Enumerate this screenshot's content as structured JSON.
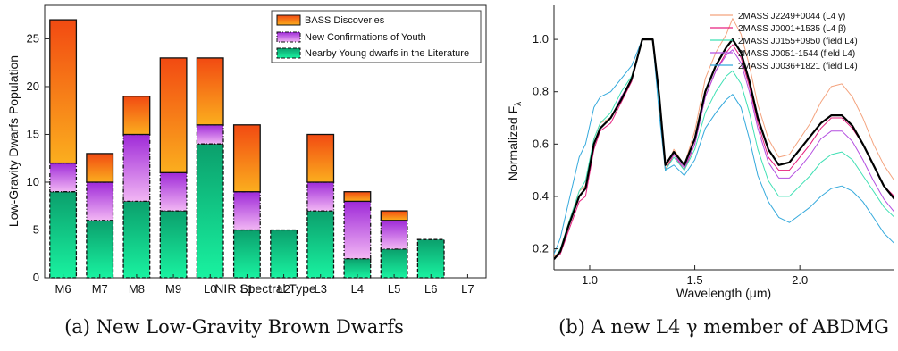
{
  "chart_data": [
    {
      "type": "bar",
      "stacked": true,
      "categories": [
        "M6",
        "M7",
        "M8",
        "M9",
        "L0",
        "L1",
        "L2",
        "L3",
        "L4",
        "L5",
        "L6",
        "L7"
      ],
      "series": [
        {
          "name": "Nearby Young dwarfs in the Literature",
          "values": [
            9,
            6,
            8,
            7,
            14,
            5,
            5,
            7,
            2,
            3,
            4,
            0
          ],
          "color": "#14d68f"
        },
        {
          "name": "New Confirmations of Youth",
          "values": [
            3,
            4,
            7,
            4,
            2,
            4,
            0,
            3,
            6,
            3,
            0,
            0
          ],
          "color": "#b13ee6"
        },
        {
          "name": "BASS Discoveries",
          "values": [
            15,
            3,
            4,
            12,
            7,
            7,
            0,
            5,
            1,
            1,
            0,
            0
          ],
          "color": "#f3641a"
        }
      ],
      "title": "",
      "xlabel": "NIR Spectral Type",
      "ylabel": "Low-Gravity Dwarfs Population",
      "ylim": [
        0,
        28.5
      ],
      "yticks": [
        0,
        5,
        10,
        15,
        20,
        25
      ],
      "legend_position": "top-right",
      "caption": "(a) New Low-Gravity Brown Dwarfs"
    },
    {
      "type": "line",
      "title": "",
      "xlabel": "Wavelength (μm)",
      "ylabel": "Normalized F",
      "ylabel_sub": "λ",
      "xlim": [
        0.83,
        2.45
      ],
      "ylim": [
        0.12,
        1.13
      ],
      "xticks": [
        1.0,
        1.5,
        2.0
      ],
      "xtick_labels": [
        "1.0",
        "1.5",
        "2.0"
      ],
      "yticks": [
        0.2,
        0.4,
        0.6,
        0.8,
        1.0
      ],
      "ytick_labels": [
        "0.2",
        "0.4",
        "0.6",
        "0.8",
        "1.0"
      ],
      "legend_position": "top-right",
      "series": [
        {
          "name": "2MASS J2249+0044 (L4 γ)",
          "color": "#f4a37e",
          "width": 1,
          "points": [
            [
              0.83,
              0.17
            ],
            [
              0.86,
              0.19
            ],
            [
              0.9,
              0.3
            ],
            [
              0.95,
              0.42
            ],
            [
              0.98,
              0.44
            ],
            [
              1.02,
              0.62
            ],
            [
              1.05,
              0.68
            ],
            [
              1.1,
              0.7
            ],
            [
              1.15,
              0.78
            ],
            [
              1.2,
              0.85
            ],
            [
              1.25,
              1.0
            ],
            [
              1.3,
              1.0
            ],
            [
              1.33,
              0.8
            ],
            [
              1.36,
              0.5
            ],
            [
              1.4,
              0.58
            ],
            [
              1.45,
              0.52
            ],
            [
              1.5,
              0.65
            ],
            [
              1.55,
              0.85
            ],
            [
              1.6,
              0.95
            ],
            [
              1.65,
              1.02
            ],
            [
              1.68,
              1.08
            ],
            [
              1.72,
              1.02
            ],
            [
              1.76,
              0.9
            ],
            [
              1.8,
              0.75
            ],
            [
              1.85,
              0.62
            ],
            [
              1.9,
              0.55
            ],
            [
              1.95,
              0.56
            ],
            [
              2.0,
              0.62
            ],
            [
              2.05,
              0.68
            ],
            [
              2.1,
              0.76
            ],
            [
              2.15,
              0.82
            ],
            [
              2.2,
              0.83
            ],
            [
              2.25,
              0.78
            ],
            [
              2.3,
              0.7
            ],
            [
              2.35,
              0.6
            ],
            [
              2.4,
              0.52
            ],
            [
              2.45,
              0.46
            ]
          ]
        },
        {
          "name": "2MASS J0001+1535 (L4 β)",
          "color": "#e6207f",
          "width": 1,
          "points": [
            [
              0.83,
              0.16
            ],
            [
              0.86,
              0.18
            ],
            [
              0.9,
              0.27
            ],
            [
              0.95,
              0.38
            ],
            [
              0.98,
              0.4
            ],
            [
              1.02,
              0.58
            ],
            [
              1.05,
              0.65
            ],
            [
              1.1,
              0.68
            ],
            [
              1.15,
              0.76
            ],
            [
              1.2,
              0.84
            ],
            [
              1.25,
              1.0
            ],
            [
              1.3,
              1.0
            ],
            [
              1.33,
              0.78
            ],
            [
              1.36,
              0.5
            ],
            [
              1.4,
              0.56
            ],
            [
              1.45,
              0.5
            ],
            [
              1.5,
              0.6
            ],
            [
              1.55,
              0.78
            ],
            [
              1.6,
              0.88
            ],
            [
              1.65,
              0.95
            ],
            [
              1.68,
              0.98
            ],
            [
              1.72,
              0.93
            ],
            [
              1.76,
              0.82
            ],
            [
              1.8,
              0.68
            ],
            [
              1.85,
              0.55
            ],
            [
              1.9,
              0.5
            ],
            [
              1.95,
              0.5
            ],
            [
              2.0,
              0.55
            ],
            [
              2.05,
              0.6
            ],
            [
              2.1,
              0.66
            ],
            [
              2.15,
              0.7
            ],
            [
              2.2,
              0.7
            ],
            [
              2.25,
              0.66
            ],
            [
              2.3,
              0.6
            ],
            [
              2.35,
              0.52
            ],
            [
              2.4,
              0.44
            ],
            [
              2.45,
              0.4
            ]
          ]
        },
        {
          "name": "2MASS J0155+0950 (field L4)",
          "color": "#3fe0b4",
          "width": 1,
          "points": [
            [
              0.83,
              0.16
            ],
            [
              0.86,
              0.2
            ],
            [
              0.9,
              0.3
            ],
            [
              0.95,
              0.42
            ],
            [
              0.98,
              0.46
            ],
            [
              1.02,
              0.62
            ],
            [
              1.05,
              0.68
            ],
            [
              1.1,
              0.72
            ],
            [
              1.15,
              0.8
            ],
            [
              1.2,
              0.86
            ],
            [
              1.25,
              1.0
            ],
            [
              1.3,
              1.0
            ],
            [
              1.33,
              0.76
            ],
            [
              1.36,
              0.5
            ],
            [
              1.4,
              0.55
            ],
            [
              1.45,
              0.5
            ],
            [
              1.5,
              0.58
            ],
            [
              1.55,
              0.72
            ],
            [
              1.6,
              0.8
            ],
            [
              1.65,
              0.86
            ],
            [
              1.68,
              0.88
            ],
            [
              1.72,
              0.83
            ],
            [
              1.76,
              0.72
            ],
            [
              1.8,
              0.58
            ],
            [
              1.85,
              0.46
            ],
            [
              1.9,
              0.4
            ],
            [
              1.95,
              0.4
            ],
            [
              2.0,
              0.44
            ],
            [
              2.05,
              0.48
            ],
            [
              2.1,
              0.53
            ],
            [
              2.15,
              0.56
            ],
            [
              2.2,
              0.57
            ],
            [
              2.25,
              0.54
            ],
            [
              2.3,
              0.48
            ],
            [
              2.35,
              0.42
            ],
            [
              2.4,
              0.36
            ],
            [
              2.45,
              0.32
            ]
          ]
        },
        {
          "name": "2MASS J0051-1544 (field L4)",
          "color": "#b44fe0",
          "width": 1,
          "points": [
            [
              0.83,
              0.16
            ],
            [
              0.86,
              0.19
            ],
            [
              0.9,
              0.29
            ],
            [
              0.95,
              0.4
            ],
            [
              0.98,
              0.43
            ],
            [
              1.02,
              0.6
            ],
            [
              1.05,
              0.66
            ],
            [
              1.1,
              0.7
            ],
            [
              1.15,
              0.78
            ],
            [
              1.2,
              0.85
            ],
            [
              1.25,
              1.0
            ],
            [
              1.3,
              1.0
            ],
            [
              1.33,
              0.78
            ],
            [
              1.36,
              0.52
            ],
            [
              1.4,
              0.56
            ],
            [
              1.45,
              0.51
            ],
            [
              1.5,
              0.6
            ],
            [
              1.55,
              0.78
            ],
            [
              1.6,
              0.88
            ],
            [
              1.65,
              0.94
            ],
            [
              1.68,
              0.96
            ],
            [
              1.72,
              0.91
            ],
            [
              1.76,
              0.8
            ],
            [
              1.8,
              0.66
            ],
            [
              1.85,
              0.53
            ],
            [
              1.9,
              0.47
            ],
            [
              1.95,
              0.47
            ],
            [
              2.0,
              0.51
            ],
            [
              2.05,
              0.56
            ],
            [
              2.1,
              0.62
            ],
            [
              2.15,
              0.65
            ],
            [
              2.2,
              0.65
            ],
            [
              2.25,
              0.61
            ],
            [
              2.3,
              0.54
            ],
            [
              2.35,
              0.46
            ],
            [
              2.4,
              0.39
            ],
            [
              2.45,
              0.34
            ]
          ]
        },
        {
          "name": "2MASS J0036+1821 (field L4)",
          "color": "#34a9dc",
          "width": 1,
          "points": [
            [
              0.83,
              0.18
            ],
            [
              0.86,
              0.24
            ],
            [
              0.9,
              0.38
            ],
            [
              0.95,
              0.55
            ],
            [
              0.98,
              0.6
            ],
            [
              1.02,
              0.74
            ],
            [
              1.05,
              0.78
            ],
            [
              1.1,
              0.8
            ],
            [
              1.15,
              0.85
            ],
            [
              1.2,
              0.9
            ],
            [
              1.25,
              1.0
            ],
            [
              1.3,
              1.0
            ],
            [
              1.33,
              0.72
            ],
            [
              1.36,
              0.5
            ],
            [
              1.4,
              0.52
            ],
            [
              1.45,
              0.48
            ],
            [
              1.5,
              0.54
            ],
            [
              1.55,
              0.66
            ],
            [
              1.6,
              0.72
            ],
            [
              1.65,
              0.77
            ],
            [
              1.68,
              0.79
            ],
            [
              1.72,
              0.74
            ],
            [
              1.76,
              0.62
            ],
            [
              1.8,
              0.48
            ],
            [
              1.85,
              0.38
            ],
            [
              1.9,
              0.32
            ],
            [
              1.95,
              0.3
            ],
            [
              2.0,
              0.33
            ],
            [
              2.05,
              0.36
            ],
            [
              2.1,
              0.4
            ],
            [
              2.15,
              0.43
            ],
            [
              2.2,
              0.44
            ],
            [
              2.25,
              0.42
            ],
            [
              2.3,
              0.38
            ],
            [
              2.35,
              0.32
            ],
            [
              2.4,
              0.26
            ],
            [
              2.45,
              0.22
            ]
          ]
        },
        {
          "name": "",
          "color": "#000000",
          "width": 2.2,
          "points": [
            [
              0.83,
              0.16
            ],
            [
              0.86,
              0.19
            ],
            [
              0.9,
              0.29
            ],
            [
              0.95,
              0.4
            ],
            [
              0.98,
              0.43
            ],
            [
              1.02,
              0.6
            ],
            [
              1.05,
              0.66
            ],
            [
              1.1,
              0.7
            ],
            [
              1.15,
              0.77
            ],
            [
              1.2,
              0.85
            ],
            [
              1.25,
              1.0
            ],
            [
              1.3,
              1.0
            ],
            [
              1.33,
              0.79
            ],
            [
              1.36,
              0.52
            ],
            [
              1.4,
              0.57
            ],
            [
              1.45,
              0.52
            ],
            [
              1.5,
              0.62
            ],
            [
              1.55,
              0.8
            ],
            [
              1.6,
              0.9
            ],
            [
              1.65,
              0.97
            ],
            [
              1.68,
              1.0
            ],
            [
              1.72,
              0.95
            ],
            [
              1.76,
              0.84
            ],
            [
              1.8,
              0.7
            ],
            [
              1.85,
              0.58
            ],
            [
              1.9,
              0.52
            ],
            [
              1.95,
              0.53
            ],
            [
              2.0,
              0.58
            ],
            [
              2.05,
              0.63
            ],
            [
              2.1,
              0.68
            ],
            [
              2.15,
              0.71
            ],
            [
              2.2,
              0.71
            ],
            [
              2.25,
              0.67
            ],
            [
              2.3,
              0.6
            ],
            [
              2.35,
              0.52
            ],
            [
              2.4,
              0.44
            ],
            [
              2.45,
              0.39
            ]
          ]
        }
      ],
      "caption": "(b) A new L4 γ member of ABDMG"
    }
  ]
}
